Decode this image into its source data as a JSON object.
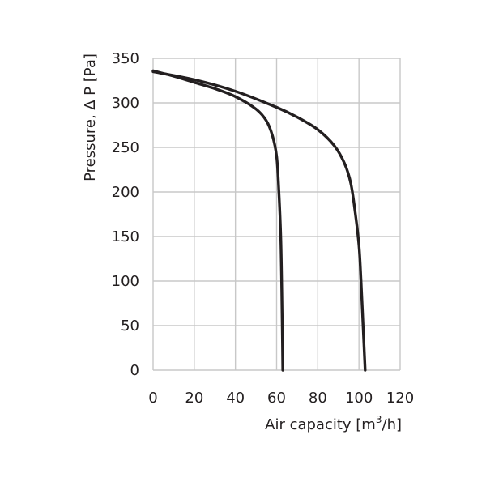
{
  "chart_data": {
    "type": "line",
    "xlabel_main": "Air capacity [m",
    "xlabel_sup": "3",
    "xlabel_end": "/h]",
    "ylabel": "Pressure, ∆ P [Pa]",
    "xlim": [
      0,
      120
    ],
    "ylim": [
      0,
      350
    ],
    "xticks": [
      "0",
      "20",
      "40",
      "60",
      "80",
      "100",
      "120"
    ],
    "yticks": [
      "0",
      "50",
      "100",
      "150",
      "200",
      "250",
      "300",
      "350"
    ],
    "grid": true,
    "legend": "none",
    "line_color": "#231f20",
    "series": [
      {
        "x": [
          0,
          10,
          20,
          30,
          40,
          50,
          55,
          58,
          60,
          61,
          62,
          62.5,
          62.8,
          63
        ],
        "y": [
          336,
          330,
          323,
          316,
          307,
          293,
          280,
          263,
          240,
          205,
          150,
          90,
          40,
          0
        ]
      },
      {
        "x": [
          0,
          20,
          40,
          60,
          70,
          80,
          88,
          93,
          96,
          98,
          100,
          101,
          102,
          103
        ],
        "y": [
          335,
          326,
          313,
          295,
          284,
          270,
          252,
          232,
          210,
          180,
          140,
          100,
          50,
          0
        ]
      }
    ]
  }
}
